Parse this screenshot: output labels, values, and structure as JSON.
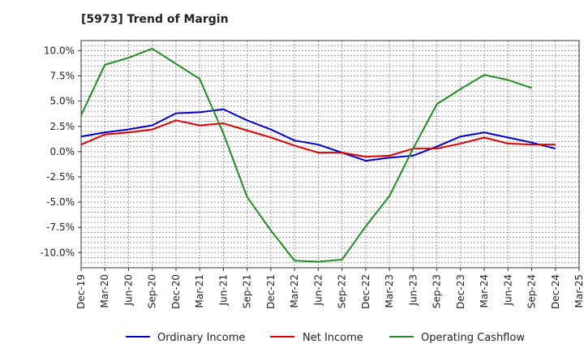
{
  "chart_data": {
    "type": "line",
    "title": "[5973]  Trend of Margin",
    "xlabel": "",
    "ylabel": "",
    "categories": [
      "Dec-19",
      "Mar-20",
      "Jun-20",
      "Sep-20",
      "Dec-20",
      "Mar-21",
      "Jun-21",
      "Sep-21",
      "Dec-21",
      "Mar-22",
      "Jun-22",
      "Sep-22",
      "Dec-22",
      "Mar-23",
      "Jun-23",
      "Sep-23",
      "Dec-23",
      "Mar-24",
      "Jun-24",
      "Sep-24",
      "Dec-24",
      "Mar-25"
    ],
    "ylim": [
      -11.5,
      11.0
    ],
    "yticks": [
      10.0,
      7.5,
      5.0,
      2.5,
      0.0,
      -2.5,
      -5.0,
      -7.5,
      -10.0
    ],
    "ytick_labels": [
      "10.0%",
      "7.5%",
      "5.0%",
      "2.5%",
      "0.0%",
      "-2.5%",
      "-5.0%",
      "-7.5%",
      "-10.0%"
    ],
    "grid": true,
    "legend_position": "bottom",
    "series": [
      {
        "name": "Ordinary Income",
        "color": "#0000cc",
        "values": [
          1.5,
          1.9,
          2.2,
          2.6,
          3.8,
          3.9,
          4.2,
          3.1,
          2.2,
          1.1,
          0.7,
          -0.1,
          -0.9,
          -0.6,
          -0.4,
          0.5,
          1.5,
          1.9,
          1.4,
          0.9,
          0.3,
          null
        ]
      },
      {
        "name": "Net Income",
        "color": "#dd0000",
        "values": [
          0.7,
          1.7,
          1.9,
          2.2,
          3.1,
          2.6,
          2.8,
          2.1,
          1.4,
          0.6,
          -0.1,
          -0.1,
          -0.5,
          -0.4,
          0.3,
          0.3,
          0.8,
          1.4,
          0.8,
          0.7,
          0.7,
          null
        ]
      },
      {
        "name": "Operating Cashflow",
        "color": "#228b22",
        "values": [
          3.6,
          8.6,
          9.3,
          10.2,
          8.7,
          7.2,
          1.8,
          -4.5,
          -7.8,
          -10.8,
          -10.9,
          -10.7,
          -7.4,
          -4.4,
          0.3,
          4.7,
          6.2,
          7.6,
          7.1,
          6.3,
          null,
          null
        ]
      }
    ]
  }
}
